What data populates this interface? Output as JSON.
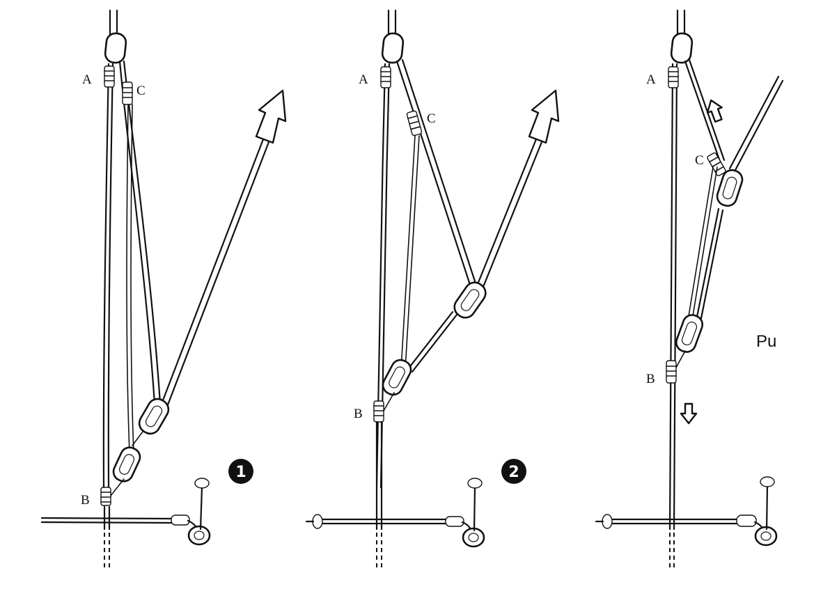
{
  "panels": [
    {
      "number": "1",
      "labels": {
        "a": "A",
        "b": "B",
        "c": "C"
      }
    },
    {
      "number": "2",
      "labels": {
        "a": "A",
        "b": "B",
        "c": "C"
      }
    },
    {
      "number": "",
      "labels": {
        "a": "A",
        "b": "B",
        "c": "C"
      }
    }
  ],
  "cropped_text": "Pu"
}
